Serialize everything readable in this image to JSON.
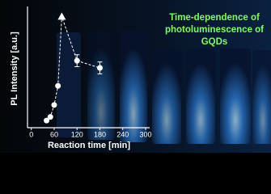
{
  "chart_data": {
    "type": "scatter",
    "title_lines": [
      "Time-dependence of",
      "photoluminescence of",
      "GQDs"
    ],
    "x_label": "Reaction time [min]",
    "y_label": "PL Intensity [a.u.]",
    "x": [
      40,
      50,
      60,
      70,
      80,
      120,
      180
    ],
    "series": [
      {
        "color": "#ffffff",
        "values": [
          6,
          9,
          19,
          35,
          93,
          56,
          50
        ],
        "errors": [
          null,
          null,
          null,
          null,
          null,
          5,
          5
        ],
        "markers": [
          "circle",
          "circle",
          "circle",
          "circle",
          "triangle",
          "circle",
          "circle"
        ]
      }
    ],
    "xlim": [
      -10,
      300
    ],
    "ylim": [
      0,
      100
    ],
    "xticks": [
      0,
      60,
      120,
      180,
      240,
      300
    ],
    "fit_line": "dashed"
  }
}
